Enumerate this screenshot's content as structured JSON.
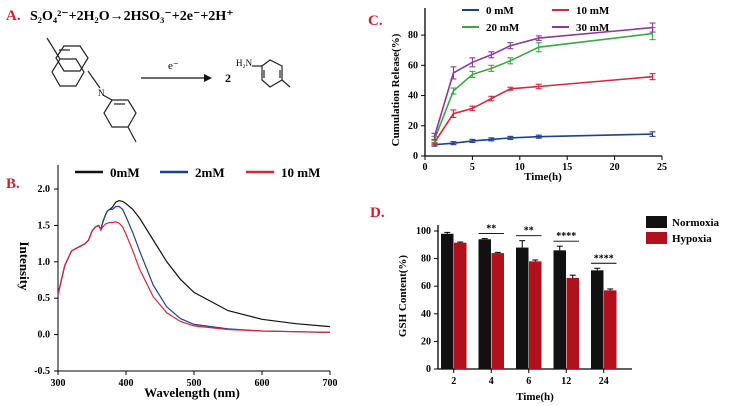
{
  "panels": {
    "A": {
      "label": "A.",
      "equation": "S₂O₄²⁻+2H₂O→2HSO₃⁻+2e⁻+2H⁺",
      "electron": "e⁻",
      "coefficient": "2",
      "n_label": "N",
      "h2n_label": "H₂N"
    },
    "B": {
      "label": "B."
    },
    "C": {
      "label": "C."
    },
    "D": {
      "label": "D."
    }
  },
  "chart_data": [
    {
      "id": "B",
      "type": "line",
      "title": "",
      "xlabel": "Wavelength (nm)",
      "ylabel": "Intensity",
      "xlim": [
        300,
        700
      ],
      "ylim": [
        -0.5,
        2.0
      ],
      "xticks": [
        300,
        400,
        500,
        600,
        700
      ],
      "yticks": [
        -0.5,
        0.0,
        0.5,
        1.0,
        1.5,
        2.0
      ],
      "ytick_labels": [
        "-0.5",
        "0.0",
        "0.5",
        "1.0",
        "1.5",
        "2.0"
      ],
      "legend_position": "top",
      "series": [
        {
          "name": "0mM",
          "color": "#111111",
          "x": [
            300,
            310,
            320,
            330,
            340,
            345,
            350,
            355,
            360,
            363,
            366,
            370,
            373,
            376,
            380,
            385,
            390,
            395,
            400,
            410,
            420,
            440,
            460,
            480,
            500,
            550,
            600,
            650,
            700
          ],
          "y": [
            0.55,
            0.95,
            1.15,
            1.2,
            1.25,
            1.3,
            1.42,
            1.48,
            1.5,
            1.44,
            1.55,
            1.65,
            1.7,
            1.72,
            1.75,
            1.82,
            1.84,
            1.83,
            1.8,
            1.72,
            1.6,
            1.3,
            1.0,
            0.76,
            0.58,
            0.33,
            0.21,
            0.15,
            0.11
          ]
        },
        {
          "name": "2mM",
          "color": "#1f3f91",
          "x": [
            300,
            310,
            320,
            330,
            340,
            345,
            350,
            355,
            360,
            363,
            366,
            370,
            373,
            376,
            380,
            385,
            390,
            395,
            400,
            410,
            420,
            440,
            460,
            480,
            500,
            550,
            600,
            650,
            700
          ],
          "y": [
            0.55,
            0.95,
            1.15,
            1.2,
            1.25,
            1.3,
            1.42,
            1.48,
            1.5,
            1.44,
            1.55,
            1.65,
            1.7,
            1.72,
            1.72,
            1.76,
            1.76,
            1.72,
            1.62,
            1.4,
            1.15,
            0.68,
            0.38,
            0.22,
            0.14,
            0.08,
            0.05,
            0.04,
            0.03
          ]
        },
        {
          "name": "10 mM",
          "color": "#d7263d",
          "x": [
            300,
            310,
            320,
            330,
            340,
            345,
            350,
            355,
            360,
            363,
            366,
            370,
            373,
            376,
            380,
            385,
            390,
            395,
            400,
            410,
            420,
            440,
            460,
            480,
            500,
            550,
            600,
            650,
            700
          ],
          "y": [
            0.55,
            0.95,
            1.15,
            1.2,
            1.25,
            1.3,
            1.42,
            1.48,
            1.5,
            1.44,
            1.48,
            1.52,
            1.53,
            1.54,
            1.54,
            1.55,
            1.53,
            1.48,
            1.38,
            1.15,
            0.9,
            0.52,
            0.3,
            0.18,
            0.12,
            0.07,
            0.05,
            0.04,
            0.03
          ]
        }
      ]
    },
    {
      "id": "C",
      "type": "line",
      "title": "",
      "xlabel": "Time(h)",
      "ylabel": "Cumulation Release(%)",
      "xlim": [
        0,
        25
      ],
      "ylim": [
        0,
        90
      ],
      "xticks": [
        0,
        5,
        10,
        15,
        20,
        25
      ],
      "yticks": [
        0,
        20,
        40,
        60,
        80
      ],
      "legend_position": "top",
      "series": [
        {
          "name": "0 mM",
          "color": "#1f3f91",
          "x": [
            1,
            3,
            5,
            7,
            9,
            12,
            24
          ],
          "y": [
            7.5,
            8.5,
            10,
            11,
            12,
            12.8,
            14.5
          ],
          "err": [
            1,
            1,
            1,
            1,
            1,
            1,
            1.5
          ]
        },
        {
          "name": "10 mM",
          "color": "#d7263d",
          "x": [
            1,
            3,
            5,
            7,
            9,
            12,
            24
          ],
          "y": [
            9,
            28,
            31.5,
            38,
            44.5,
            46,
            52.5
          ],
          "err": [
            1.5,
            2.5,
            1.5,
            1.5,
            1,
            1.5,
            2
          ]
        },
        {
          "name": "20 mM",
          "color": "#39a845",
          "x": [
            1,
            3,
            5,
            7,
            9,
            12,
            24
          ],
          "y": [
            11,
            43,
            54,
            58,
            63,
            72,
            81
          ],
          "err": [
            2,
            2,
            2,
            2,
            2,
            3,
            4
          ]
        },
        {
          "name": "30 mM",
          "color": "#8a3a9c",
          "x": [
            1,
            3,
            5,
            7,
            9,
            12,
            24
          ],
          "y": [
            13,
            55,
            62,
            67,
            73,
            78,
            85
          ],
          "err": [
            2,
            4,
            3,
            2,
            2,
            1.5,
            3
          ]
        }
      ]
    },
    {
      "id": "D",
      "type": "bar",
      "title": "",
      "xlabel": "Time(h)",
      "ylabel": "GSH Content(%)",
      "categories": [
        "2",
        "4",
        "6",
        "12",
        "24"
      ],
      "ylim": [
        0,
        100
      ],
      "yticks": [
        0,
        20,
        40,
        60,
        80,
        100
      ],
      "legend_position": "top-right",
      "series": [
        {
          "name": "Normoxia",
          "color": "#111111",
          "values": [
            98,
            94,
            88,
            86,
            71.5
          ],
          "err": [
            1,
            0.5,
            5,
            3,
            1.5
          ]
        },
        {
          "name": "Hypoxia",
          "color": "#b0111c",
          "values": [
            91.5,
            84,
            78,
            66,
            57
          ],
          "err": [
            0.5,
            0.5,
            1,
            2,
            1
          ]
        }
      ],
      "significance": [
        "",
        "**",
        "**",
        "****",
        "****"
      ]
    }
  ]
}
